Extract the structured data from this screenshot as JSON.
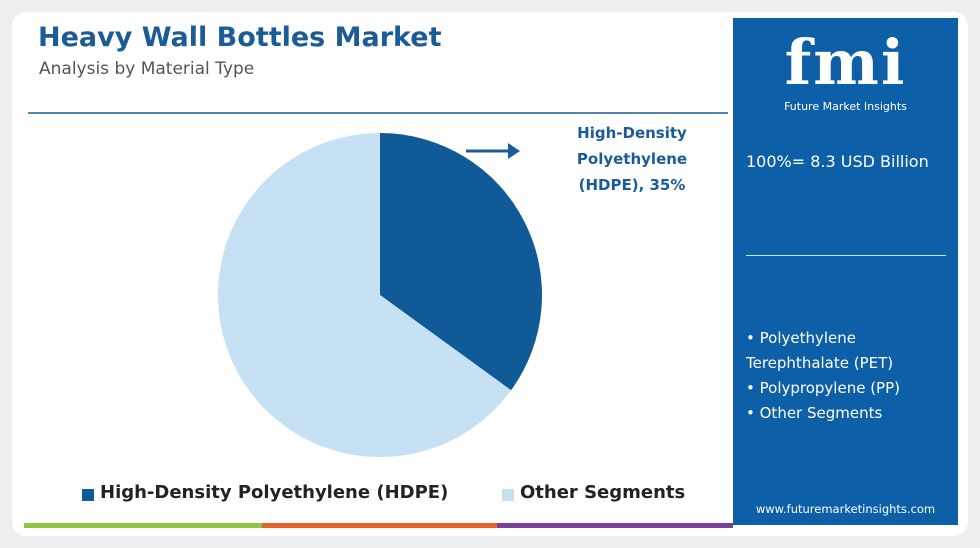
{
  "chart_data": {
    "type": "pie",
    "title": "Heavy Wall Bottles Market",
    "subtitle": "Analysis by Material Type",
    "categories": [
      "High-Density Polyethylene (HDPE)",
      "Other Segments"
    ],
    "values": [
      35,
      65
    ],
    "colors": [
      "#0f5a97",
      "#c6e1f4"
    ],
    "annotation": "High-Density Polyethylene (HDPE), 35%"
  },
  "panel": {
    "logo": "fmi",
    "brand": "Future Market Insights",
    "total": "100%= 8.3 USD Billion",
    "items": [
      "Polyethylene Terephthalate (PET)",
      "Polypropylene (PP)",
      "Other Segments"
    ],
    "website": "www.futuremarketinsights.com"
  }
}
